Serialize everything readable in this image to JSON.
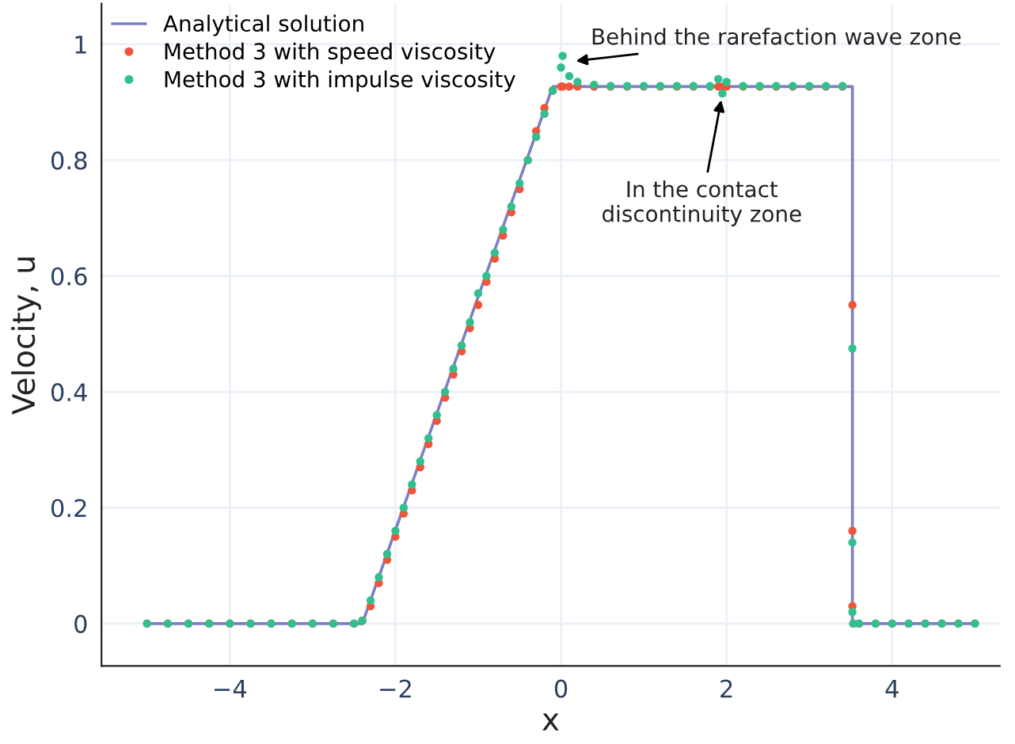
{
  "chart_data": {
    "type": "line",
    "xlabel": "x",
    "ylabel": "Velocity, u",
    "xlim": [
      -5.55,
      5.3
    ],
    "ylim": [
      -0.073,
      1.07
    ],
    "xticks": [
      {
        "value": -4,
        "label": "−4"
      },
      {
        "value": -2,
        "label": "−2"
      },
      0,
      2,
      4
    ],
    "yticks": [
      0,
      0.2,
      0.4,
      0.6,
      0.8,
      1
    ],
    "grid": true,
    "legend": "top left",
    "series": [
      {
        "name": "Analytical solution",
        "color": "#7b7fc4",
        "x": [
          -5,
          -2.4,
          -0.1,
          3.52,
          3.52,
          5
        ],
        "values": [
          0,
          0,
          0.927,
          0.927,
          0,
          0
        ]
      },
      {
        "name": "Method 3 with speed viscosity",
        "type": "scatter",
        "color": "#ef553b",
        "x": [
          -5,
          -4.75,
          -4.5,
          -4.25,
          -4,
          -3.75,
          -3.5,
          -3.25,
          -3,
          -2.75,
          -2.5,
          -2.4,
          -2.3,
          -2.2,
          -2.1,
          -2,
          -1.9,
          -1.8,
          -1.7,
          -1.6,
          -1.5,
          -1.4,
          -1.3,
          -1.2,
          -1.1,
          -1,
          -0.9,
          -0.8,
          -0.7,
          -0.6,
          -0.5,
          -0.4,
          -0.3,
          -0.2,
          -0.1,
          0,
          0.02,
          0.1,
          0.2,
          0.4,
          0.6,
          0.8,
          1,
          1.2,
          1.4,
          1.6,
          1.8,
          1.9,
          1.95,
          2,
          2.2,
          2.4,
          2.6,
          2.8,
          3,
          3.2,
          3.4,
          3.52,
          3.52,
          3.52,
          3.53,
          3.6,
          3.8,
          4,
          4.2,
          4.4,
          4.6,
          4.8,
          5
        ],
        "values": [
          0,
          0,
          0,
          0,
          0,
          0,
          0,
          0,
          0,
          0,
          0,
          0.005,
          0.03,
          0.07,
          0.11,
          0.15,
          0.19,
          0.23,
          0.27,
          0.31,
          0.35,
          0.39,
          0.43,
          0.47,
          0.51,
          0.55,
          0.59,
          0.63,
          0.67,
          0.71,
          0.75,
          0.8,
          0.85,
          0.89,
          0.92,
          0.927,
          0.927,
          0.927,
          0.927,
          0.927,
          0.927,
          0.927,
          0.927,
          0.927,
          0.927,
          0.927,
          0.927,
          0.927,
          0.927,
          0.927,
          0.927,
          0.927,
          0.927,
          0.927,
          0.927,
          0.927,
          0.927,
          0.55,
          0.16,
          0.03,
          0,
          0,
          0,
          0,
          0,
          0,
          0,
          0,
          0
        ]
      },
      {
        "name": "Method 3 with impulse viscosity",
        "type": "scatter",
        "color": "#32bf8e",
        "x": [
          -5,
          -4.75,
          -4.5,
          -4.25,
          -4,
          -3.75,
          -3.5,
          -3.25,
          -3,
          -2.75,
          -2.5,
          -2.4,
          -2.3,
          -2.2,
          -2.1,
          -2,
          -1.9,
          -1.8,
          -1.7,
          -1.6,
          -1.5,
          -1.4,
          -1.3,
          -1.2,
          -1.1,
          -1,
          -0.9,
          -0.8,
          -0.7,
          -0.6,
          -0.5,
          -0.4,
          -0.3,
          -0.2,
          -0.1,
          0,
          0.02,
          0.1,
          0.2,
          0.4,
          0.6,
          0.8,
          1,
          1.2,
          1.4,
          1.6,
          1.8,
          1.9,
          1.95,
          2,
          2.2,
          2.4,
          2.6,
          2.8,
          3,
          3.2,
          3.4,
          3.52,
          3.52,
          3.52,
          3.53,
          3.6,
          3.8,
          4,
          4.2,
          4.4,
          4.6,
          4.8,
          5
        ],
        "values": [
          0,
          0,
          0,
          0,
          0,
          0,
          0,
          0,
          0,
          0,
          0,
          0.005,
          0.04,
          0.08,
          0.12,
          0.16,
          0.2,
          0.24,
          0.28,
          0.32,
          0.36,
          0.4,
          0.44,
          0.48,
          0.52,
          0.57,
          0.6,
          0.64,
          0.68,
          0.72,
          0.76,
          0.8,
          0.84,
          0.88,
          0.92,
          0.96,
          0.98,
          0.945,
          0.935,
          0.93,
          0.928,
          0.928,
          0.928,
          0.928,
          0.928,
          0.928,
          0.928,
          0.94,
          0.915,
          0.935,
          0.928,
          0.928,
          0.928,
          0.928,
          0.928,
          0.928,
          0.928,
          0.475,
          0.14,
          0.02,
          0,
          0,
          0,
          0,
          0,
          0,
          0,
          0,
          0
        ]
      }
    ],
    "annotations": [
      {
        "text": "Behind the rarefaction wave zone",
        "x": 0.1,
        "y": 0.97
      },
      {
        "text": "In the contact\ndiscontinuity zone",
        "x": 1.95,
        "y": 0.915
      }
    ]
  }
}
